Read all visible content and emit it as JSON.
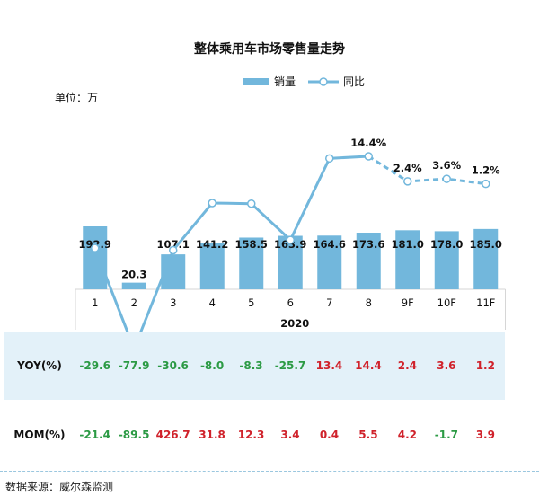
{
  "chart_data": {
    "type": "bar",
    "title": "整体乘用车市场零售量走势",
    "unit_label": "单位：万",
    "x_group_label": "2020",
    "categories": [
      "1",
      "2",
      "3",
      "4",
      "5",
      "6",
      "7",
      "8",
      "9F",
      "10F",
      "11F"
    ],
    "series": [
      {
        "name": "销量",
        "type": "bar",
        "values": [
          192.9,
          20.3,
          107.1,
          141.2,
          158.5,
          163.9,
          164.6,
          173.6,
          181.0,
          178.0,
          185.0
        ]
      },
      {
        "name": "同比",
        "type": "line",
        "values": [
          -29.6,
          -77.9,
          -30.6,
          -8.0,
          -8.3,
          -25.7,
          13.4,
          14.4,
          2.4,
          3.6,
          1.2
        ],
        "forecast_from_index": 8
      }
    ],
    "line_labels": [
      {
        "index": 7,
        "text": "14.4%"
      },
      {
        "index": 8,
        "text": "2.4%"
      },
      {
        "index": 9,
        "text": "3.6%"
      },
      {
        "index": 10,
        "text": "1.2%"
      }
    ],
    "colors": {
      "bar": "#72b7dc",
      "line": "#72b7dc",
      "positive": "#d0222b",
      "negative": "#2b9a44",
      "row_fill": "#e3f1f9"
    }
  },
  "table": {
    "yoy": {
      "header": "YOY(%)",
      "values": [
        "-29.6",
        "-77.9",
        "-30.6",
        "-8.0",
        "-8.3",
        "-25.7",
        "13.4",
        "14.4",
        "2.4",
        "3.6",
        "1.2"
      ]
    },
    "mom": {
      "header": "MOM(%)",
      "values": [
        "-21.4",
        "-89.5",
        "426.7",
        "31.8",
        "12.3",
        "3.4",
        "0.4",
        "5.5",
        "4.2",
        "-1.7",
        "3.9"
      ]
    }
  },
  "source": "数据来源：威尔森监测"
}
